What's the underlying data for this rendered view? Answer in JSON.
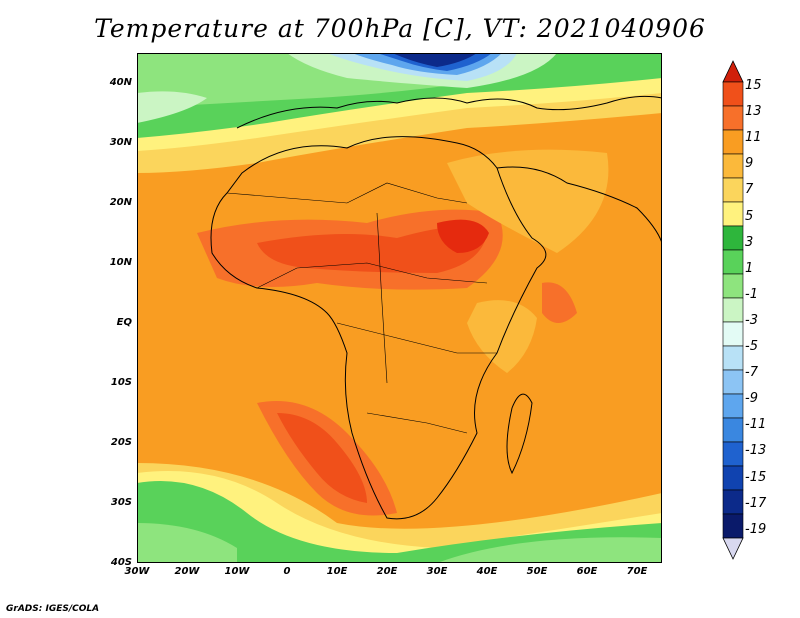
{
  "title": "Temperature at 700hPa [C], VT: 2021040906",
  "credit": "GrADS: IGES/COLA",
  "lat_ticks": [
    "40N",
    "30N",
    "20N",
    "10N",
    "EQ",
    "10S",
    "20S",
    "30S",
    "40S"
  ],
  "lon_ticks": [
    "30W",
    "20W",
    "10W",
    "0",
    "10E",
    "20E",
    "30E",
    "40E",
    "50E",
    "60E",
    "70E"
  ],
  "colorbar": {
    "labels": [
      "15",
      "13",
      "11",
      "9",
      "7",
      "5",
      "3",
      "1",
      "-1",
      "-3",
      "-5",
      "-7",
      "-9",
      "-11",
      "-13",
      "-15",
      "-17",
      "-19"
    ],
    "colors": [
      "#e52a0e",
      "#f0501a",
      "#f7702a",
      "#f99d22",
      "#fbb93b",
      "#fbd55c",
      "#fff27e",
      "#2eb63c",
      "#59d25a",
      "#8ee47e",
      "#cbf5c4",
      "#e3fbf5",
      "#b8e1f6",
      "#8cc4f4",
      "#5ea6ee",
      "#3a87e0",
      "#1f62cf",
      "#1043b0",
      "#0c2a8a",
      "#0a1a6a",
      "#d8d8f0"
    ]
  }
}
